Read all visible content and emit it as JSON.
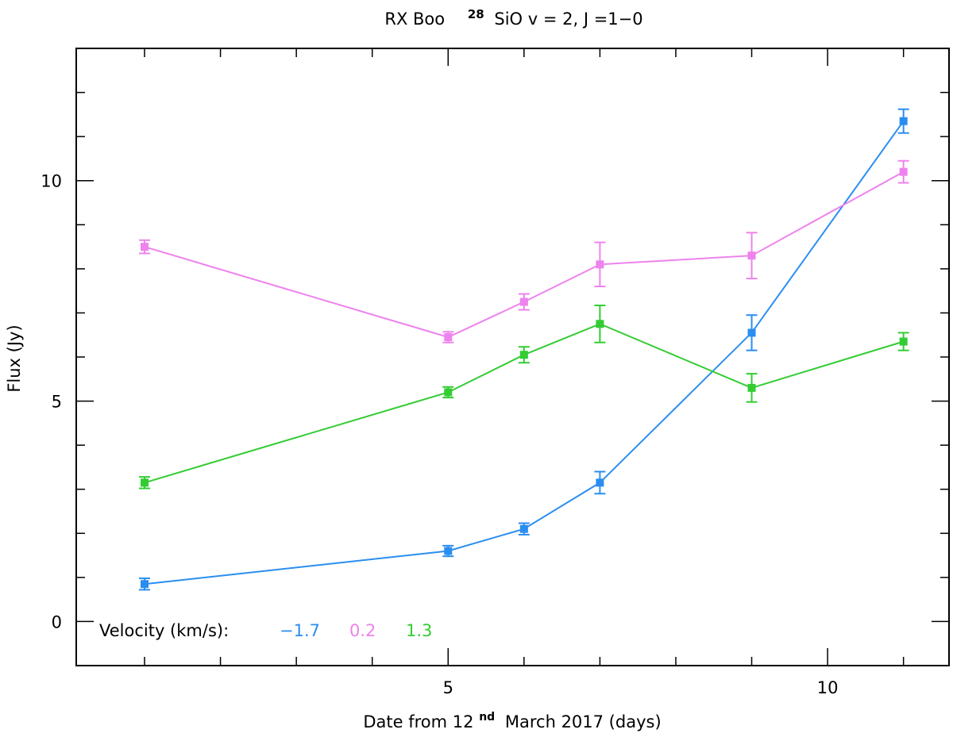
{
  "chart_data": {
    "type": "line",
    "title_main": "RX Boo",
    "title_iso": "28",
    "title_rest": "SiO v = 2, J =1−0",
    "xlabel_pre": "Date from 12",
    "xlabel_sup": "nd",
    "xlabel_post": "March 2017 (days)",
    "ylabel": "Flux (Jy)",
    "xlim": [
      0.1,
      11.6
    ],
    "ylim": [
      -1,
      13
    ],
    "xticks_major": [
      5,
      10
    ],
    "xticks_minor": [
      1,
      2,
      3,
      4,
      6,
      7,
      8,
      9,
      11
    ],
    "xtick_labels": [
      "5",
      "10"
    ],
    "yticks_major": [
      0,
      5,
      10
    ],
    "yticks_minor": [
      -1,
      1,
      2,
      3,
      4,
      6,
      7,
      8,
      9,
      11,
      12,
      13
    ],
    "ytick_labels": [
      "0",
      "5",
      "10"
    ],
    "legend_title": "Velocity (km/s):",
    "series": [
      {
        "name": "−1.7",
        "color": "#2a8ef0",
        "x": [
          1,
          5,
          6,
          7,
          9,
          11
        ],
        "y": [
          0.85,
          1.6,
          2.1,
          3.15,
          6.55,
          11.35
        ],
        "err": [
          0.13,
          0.12,
          0.13,
          0.25,
          0.4,
          0.27
        ]
      },
      {
        "name": "0.2",
        "color": "#ee82ee",
        "x": [
          1,
          5,
          6,
          7,
          9,
          11
        ],
        "y": [
          8.5,
          6.45,
          7.25,
          8.1,
          8.3,
          10.2
        ],
        "err": [
          0.15,
          0.12,
          0.18,
          0.5,
          0.52,
          0.25
        ]
      },
      {
        "name": "1.3",
        "color": "#33cc33",
        "x": [
          1,
          5,
          6,
          7,
          9,
          11
        ],
        "y": [
          3.15,
          5.2,
          6.05,
          6.75,
          5.3,
          6.35
        ],
        "err": [
          0.13,
          0.12,
          0.18,
          0.42,
          0.32,
          0.2
        ]
      }
    ]
  }
}
